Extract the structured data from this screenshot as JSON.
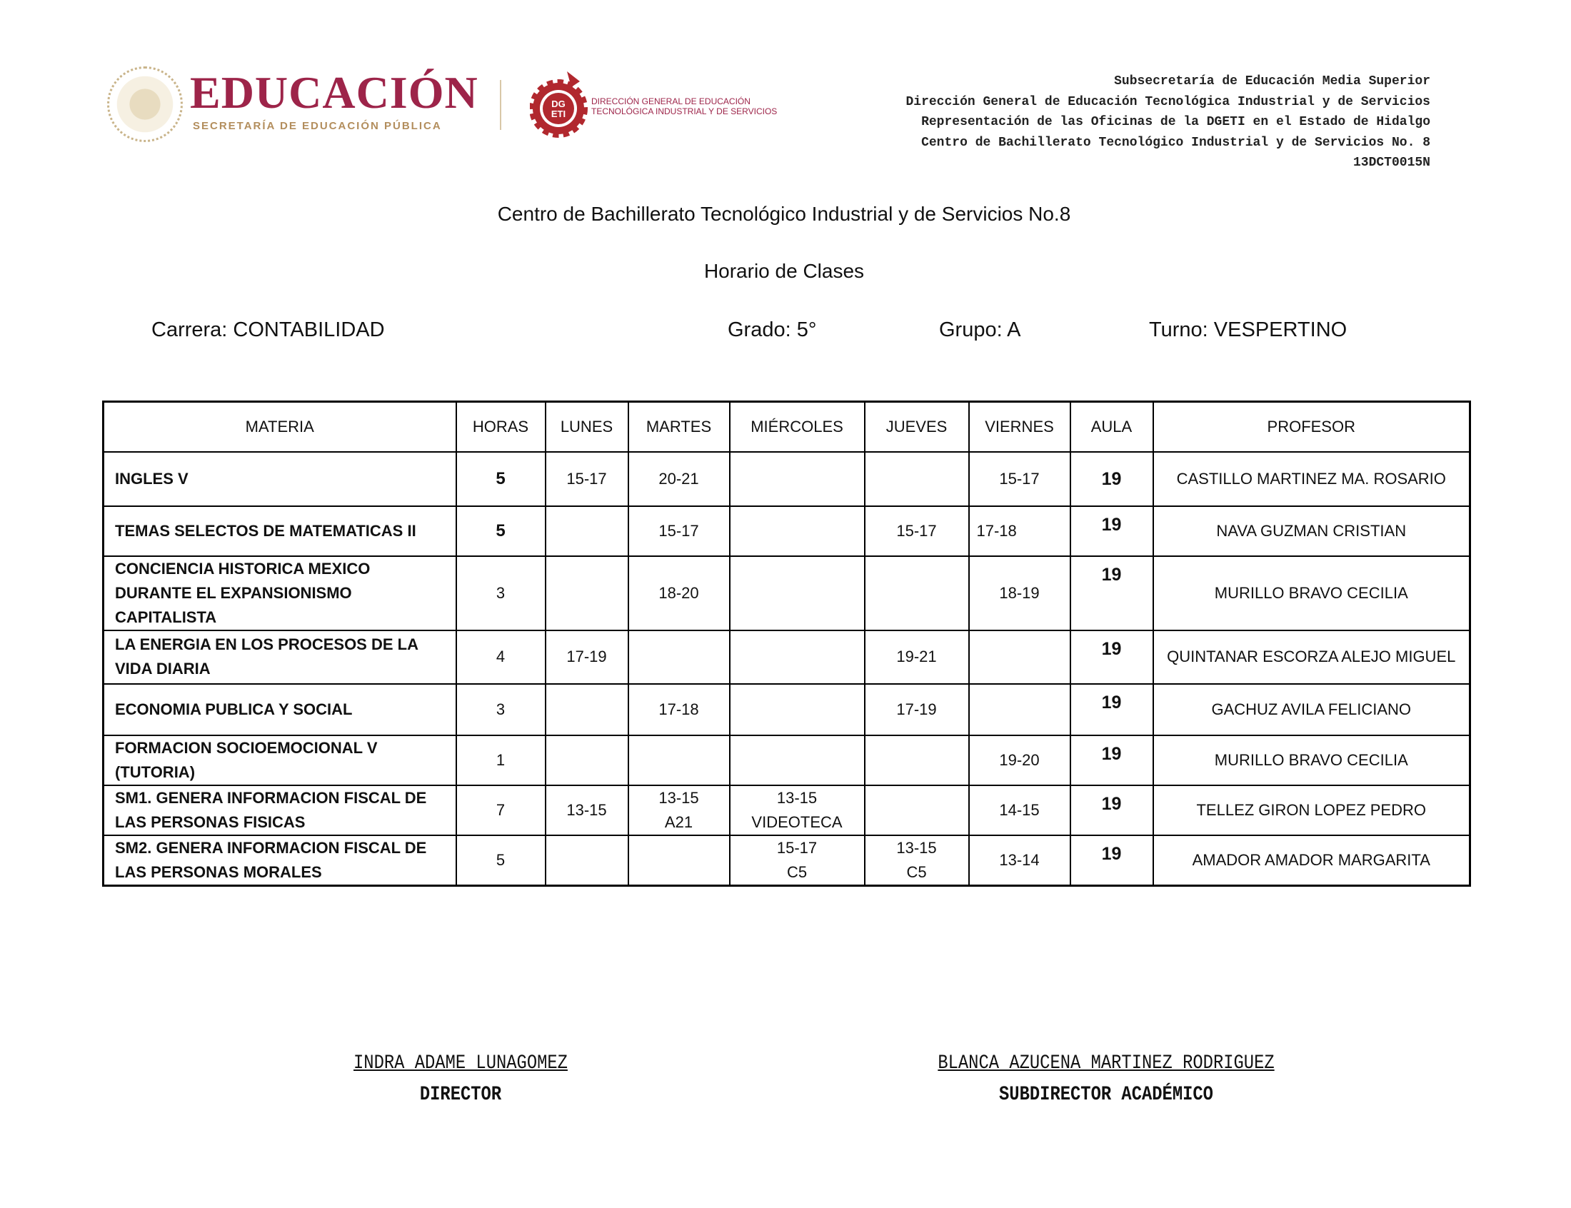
{
  "logos": {
    "sep_title": "EDUCACIÓN",
    "sep_subtitle": "SECRETARÍA DE EDUCACIÓN PÚBLICA",
    "seal_text": "ESTADOS UNIDOS MEXICANOS",
    "dgeti_badge": "DGETI",
    "dgeti_line1": "DIRECCIÓN GENERAL DE EDUCACIÓN",
    "dgeti_line2": "TECNOLÓGICA INDUSTRIAL Y DE SERVICIOS",
    "brand_color": "#9d2449",
    "gold_color": "#b38e5d"
  },
  "header_right": [
    "Subsecretaría de Educación Media Superior",
    "Dirección General de Educación Tecnológica Industrial y de Servicios",
    "Representación de las Oficinas de la DGETI en el Estado de Hidalgo",
    "Centro de Bachillerato Tecnológico Industrial y de Servicios No. 8",
    "13DCT0015N"
  ],
  "title": "Centro de Bachillerato Tecnológico Industrial y de Servicios No.8",
  "subtitle": "Horario de Clases",
  "info": {
    "carrera": "Carrera: CONTABILIDAD",
    "grado": "Grado: 5°",
    "grupo": "Grupo: A",
    "turno": "Turno: VESPERTINO"
  },
  "table": {
    "headers": [
      "MATERIA",
      "HORAS",
      "LUNES",
      "MARTES",
      "MIÉRCOLES",
      "JUEVES",
      "VIERNES",
      "AULA",
      "PROFESOR"
    ],
    "rows": [
      {
        "materia": "INGLES V",
        "horas": "5",
        "lunes": "15-17",
        "martes": "20-21",
        "miercoles": "",
        "jueves": "",
        "viernes": "15-17",
        "aula": "19",
        "profesor": "CASTILLO MARTINEZ MA. ROSARIO"
      },
      {
        "materia": "TEMAS SELECTOS DE MATEMATICAS II",
        "horas": "5",
        "lunes": "",
        "martes": "15-17",
        "miercoles": "",
        "jueves": "15-17",
        "viernes": "17-18",
        "aula": "19",
        "profesor": "NAVA GUZMAN CRISTIAN"
      },
      {
        "materia": "CONCIENCIA HISTORICA MEXICO DURANTE EL EXPANSIONISMO CAPITALISTA",
        "horas": "3",
        "lunes": "",
        "martes": "18-20",
        "miercoles": "",
        "jueves": "",
        "viernes": "18-19",
        "aula": "19",
        "profesor": "MURILLO BRAVO CECILIA"
      },
      {
        "materia": "LA ENERGIA EN LOS PROCESOS DE LA VIDA DIARIA",
        "horas": "4",
        "lunes": "17-19",
        "martes": "",
        "miercoles": "",
        "jueves": "19-21",
        "viernes": "",
        "aula": "19",
        "profesor": "QUINTANAR ESCORZA ALEJO MIGUEL"
      },
      {
        "materia": "ECONOMIA PUBLICA Y SOCIAL",
        "horas": "3",
        "lunes": "",
        "martes": "17-18",
        "miercoles": "",
        "jueves": "17-19",
        "viernes": "",
        "aula": "19",
        "profesor": "GACHUZ AVILA FELICIANO"
      },
      {
        "materia": "FORMACION SOCIOEMOCIONAL V (TUTORIA)",
        "horas": "1",
        "lunes": "",
        "martes": "",
        "miercoles": "",
        "jueves": "",
        "viernes": "19-20",
        "aula": "19",
        "profesor": "MURILLO BRAVO CECILIA"
      },
      {
        "materia": "SM1. GENERA INFORMACION FISCAL DE LAS PERSONAS FISICAS",
        "horas": "7",
        "lunes": "13-15",
        "martes": "13-15\nA21",
        "miercoles": "13-15\nVIDEOTECA",
        "jueves": "",
        "viernes": "14-15",
        "aula": "19",
        "profesor": "TELLEZ GIRON LOPEZ PEDRO"
      },
      {
        "materia": "SM2. GENERA INFORMACION FISCAL DE LAS PERSONAS MORALES",
        "horas": "5",
        "lunes": "",
        "martes": "",
        "miercoles": "15-17\nC5",
        "jueves": "13-15\nC5",
        "viernes": "13-14",
        "aula": "19",
        "profesor": "AMADOR AMADOR MARGARITA"
      }
    ]
  },
  "signatures": [
    {
      "name": "INDRA ADAME LUNAGOMEZ",
      "role": "DIRECTOR"
    },
    {
      "name": "BLANCA AZUCENA MARTINEZ RODRIGUEZ",
      "role": "SUBDIRECTOR ACADÉMICO"
    }
  ]
}
